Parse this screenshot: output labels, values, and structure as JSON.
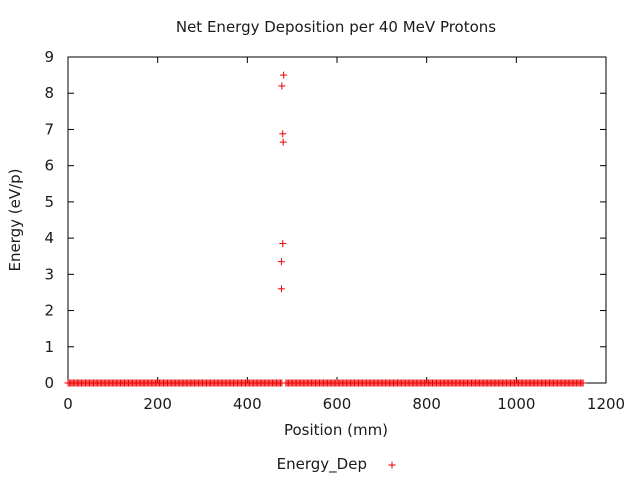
{
  "chart_data": {
    "type": "scatter",
    "title": "Net Energy Deposition per 40 MeV Protons",
    "xlabel": "Position (mm)",
    "ylabel": "Energy (eV/p)",
    "xlim": [
      0,
      1200
    ],
    "ylim": [
      0,
      9
    ],
    "xticks": [
      0,
      200,
      400,
      600,
      800,
      1000,
      1200
    ],
    "yticks": [
      0,
      1,
      2,
      3,
      4,
      5,
      6,
      7,
      8,
      9
    ],
    "grid": false,
    "legend_position": "bottom-center",
    "colors": {
      "series": "#ee0000",
      "axis": "#000000",
      "text": "#1a1a1a"
    },
    "series": [
      {
        "name": "Energy_Dep",
        "marker": "plus",
        "zero_baseline": {
          "y": 0,
          "x_start": 0,
          "x_end": 1150,
          "x_step": 3,
          "gap": [
            478,
            484
          ]
        },
        "points": [
          {
            "x": 476,
            "y": 2.6
          },
          {
            "x": 476,
            "y": 3.35
          },
          {
            "x": 479,
            "y": 3.85
          },
          {
            "x": 480,
            "y": 6.65
          },
          {
            "x": 479,
            "y": 6.88
          },
          {
            "x": 477,
            "y": 8.2
          },
          {
            "x": 481,
            "y": 8.5
          }
        ]
      }
    ]
  }
}
